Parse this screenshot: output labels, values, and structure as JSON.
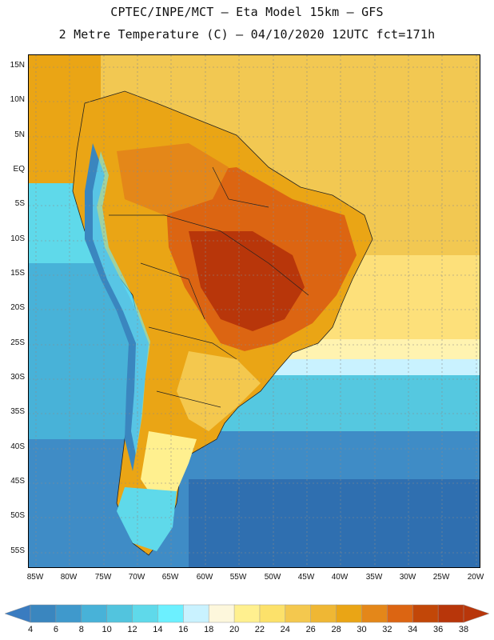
{
  "header": {
    "title_line_1": "CPTEC/INPE/MCT –  Eta Model 15km – GFS",
    "title_line_2": "2 Metre Temperature (C) – 04/10/2020 12UTC fct=171h"
  },
  "map": {
    "latitude_labels": [
      "15N",
      "10N",
      "5N",
      "EQ",
      "5S",
      "10S",
      "15S",
      "20S",
      "25S",
      "30S",
      "35S",
      "40S",
      "45S",
      "50S",
      "55S"
    ],
    "longitude_labels": [
      "85W",
      "80W",
      "75W",
      "70W",
      "65W",
      "60W",
      "55W",
      "50W",
      "45W",
      "40W",
      "35W",
      "30W",
      "25W",
      "20W"
    ],
    "extent": {
      "lon_min": -86,
      "lon_max": -19,
      "lat_min": -57,
      "lat_max": 16
    },
    "temperature_zones": [
      {
        "name": "north-atlantic",
        "band_value": 28
      },
      {
        "name": "subtropical-atlantic",
        "band_value": 26
      },
      {
        "name": "south-atlantic-cool",
        "band_value": 16
      },
      {
        "name": "southern-ocean",
        "band_value": 8
      },
      {
        "name": "pacific-tropical",
        "band_value": 14
      },
      {
        "name": "pacific-south",
        "band_value": 10
      },
      {
        "name": "amazon",
        "band_value": 32
      },
      {
        "name": "central-brazil-hot",
        "band_value": 38
      },
      {
        "name": "andes-highland",
        "band_value": 6
      },
      {
        "name": "patagonia",
        "band_value": 16
      }
    ]
  },
  "colorbar": {
    "labels": [
      "4",
      "6",
      "8",
      "10",
      "12",
      "14",
      "16",
      "18",
      "20",
      "22",
      "24",
      "26",
      "28",
      "30",
      "32",
      "34",
      "36",
      "38"
    ],
    "colors": [
      "#2f6fb0",
      "#3a86bf",
      "#3f99cc",
      "#48b2d8",
      "#52c4de",
      "#5fd9ea",
      "#6cf0ff",
      "#c9f2ff",
      "#fdf7dc",
      "#fff08f",
      "#fce16a",
      "#f4c84e",
      "#efb734",
      "#eaa515",
      "#e48719",
      "#dc6512",
      "#c24708",
      "#b8360a"
    ]
  }
}
